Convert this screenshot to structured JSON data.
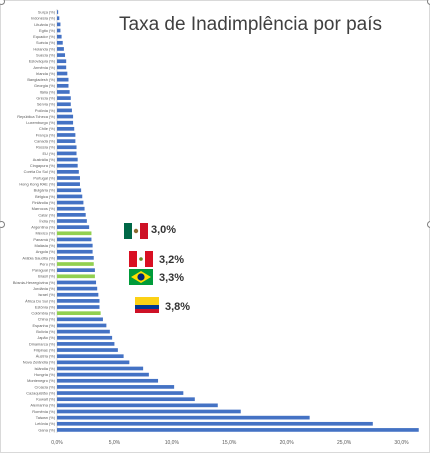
{
  "chart_data": {
    "type": "bar",
    "orientation": "horizontal",
    "title": "Taxa de Inadimplência por país",
    "categories": [
      "Suíça (%)",
      "Indonésia (%)",
      "Lituânia (%)",
      "Egito (%)",
      "Equador (%)",
      "Suécia (%)",
      "Holanda (%)",
      "Suécia (%)",
      "Eslováquia (%)",
      "Armênia (%)",
      "Irlanda (%)",
      "Bangladesh (%)",
      "Georgia (%)",
      "Itália (%)",
      "Grécia (%)",
      "Sérvia (%)",
      "Polônia (%)",
      "República Tcheca (%)",
      "Luxemburgo (%)",
      "Chile (%)",
      "França (%)",
      "Canadá (%)",
      "Rússia (%)",
      "EU (%)",
      "Austrália (%)",
      "Cingapura (%)",
      "Coréia Do Sul (%)",
      "Portugal (%)",
      "Hong Kong RAE (%)",
      "Bulgária (%)",
      "Bélgica (%)",
      "Finlândia (%)",
      "Marrocos (%)",
      "Catar (%)",
      "Índia (%)",
      "Argentina (%)",
      "México (%)",
      "Panamá (%)",
      "Malásia (%)",
      "Angola (%)",
      "Arábia Saudita (%)",
      "Peru (%)",
      "Paraguai (%)",
      "Brasil (%)",
      "Bósnia-Herzegóvina (%)",
      "Jordânia (%)",
      "Israel (%)",
      "África Do Sul (%)",
      "Estônia (%)",
      "Colômbia (%)",
      "China (%)",
      "Espanha (%)",
      "Bolívia (%)",
      "Japão (%)",
      "Dinamarca (%)",
      "Filipinas (%)",
      "Áustria (%)",
      "Nova Zelândia (%)",
      "Islândia (%)",
      "Hungria (%)",
      "Montenegro (%)",
      "Croácia (%)",
      "Cazaquistão (%)",
      "Kuwait (%)",
      "Alemanha (%)",
      "Romênia (%)",
      "Taiwan (%)",
      "Letônia (%)",
      "Gana (%)"
    ],
    "values": [
      0.1,
      0.2,
      0.3,
      0.3,
      0.4,
      0.5,
      0.6,
      0.7,
      0.8,
      0.8,
      0.9,
      1.0,
      1.0,
      1.1,
      1.2,
      1.2,
      1.3,
      1.4,
      1.4,
      1.5,
      1.6,
      1.6,
      1.7,
      1.7,
      1.8,
      1.8,
      1.9,
      2.0,
      2.0,
      2.1,
      2.2,
      2.3,
      2.4,
      2.5,
      2.6,
      2.8,
      3.0,
      3.0,
      3.1,
      3.1,
      3.2,
      3.2,
      3.3,
      3.3,
      3.4,
      3.5,
      3.6,
      3.7,
      3.7,
      3.8,
      4.0,
      4.3,
      4.6,
      4.8,
      5.0,
      5.3,
      5.8,
      6.3,
      7.5,
      8.0,
      8.8,
      10.2,
      11.0,
      12.0,
      14.0,
      16.0,
      22.0,
      27.5,
      31.5
    ],
    "highlighted": [
      "México (%)",
      "Peru (%)",
      "Brasil (%)",
      "Colômbia (%)"
    ],
    "xlim": [
      0,
      31
    ],
    "x_ticks": [
      {
        "value": 0,
        "label": "0,0%"
      },
      {
        "value": 5,
        "label": "5,0%"
      },
      {
        "value": 10,
        "label": "10,0%"
      },
      {
        "value": 15,
        "label": "15,0%"
      },
      {
        "value": 20,
        "label": "20,0%"
      },
      {
        "value": 25,
        "label": "25,0%"
      },
      {
        "value": 30,
        "label": "30,0%"
      }
    ],
    "grid": false,
    "bar_color": "#4472c4",
    "highlight_color": "#92d050"
  },
  "annotations": [
    {
      "flag": "mexico-flag",
      "value": "3,0%"
    },
    {
      "flag": "peru-flag",
      "value": "3,2%"
    },
    {
      "flag": "brazil-flag",
      "value": "3,3%"
    },
    {
      "flag": "colombia-flag",
      "value": "3,8%"
    }
  ]
}
